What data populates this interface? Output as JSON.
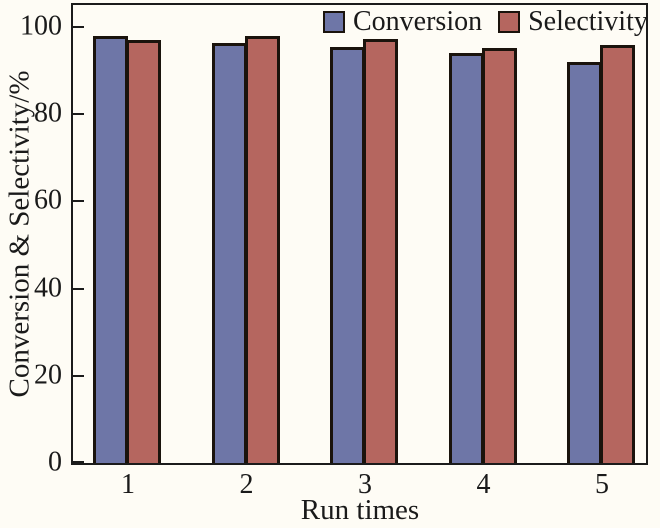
{
  "figure": {
    "background_color": "#fefcf5",
    "frame_color": "#1b1b1b",
    "text_color": "#1a1a1a",
    "bar_outline_color": "#1a130c"
  },
  "chart_data": {
    "type": "bar",
    "title": "",
    "xlabel": "Run times",
    "ylabel": "Conversion & Selectivity/%",
    "categories": [
      "1",
      "2",
      "3",
      "4",
      "5"
    ],
    "series": [
      {
        "name": "Conversion",
        "color": "#6e76a7",
        "values": [
          98.0,
          96.3,
          95.4,
          93.9,
          92.0
        ]
      },
      {
        "name": "Selectivity",
        "color": "#b5665f",
        "values": [
          97.0,
          98.0,
          97.2,
          95.1,
          95.8
        ]
      }
    ],
    "ylim": [
      0,
      105
    ],
    "yticks": [
      0,
      20,
      40,
      60,
      80,
      100
    ],
    "grid": false,
    "legend_position": "top-inside"
  }
}
